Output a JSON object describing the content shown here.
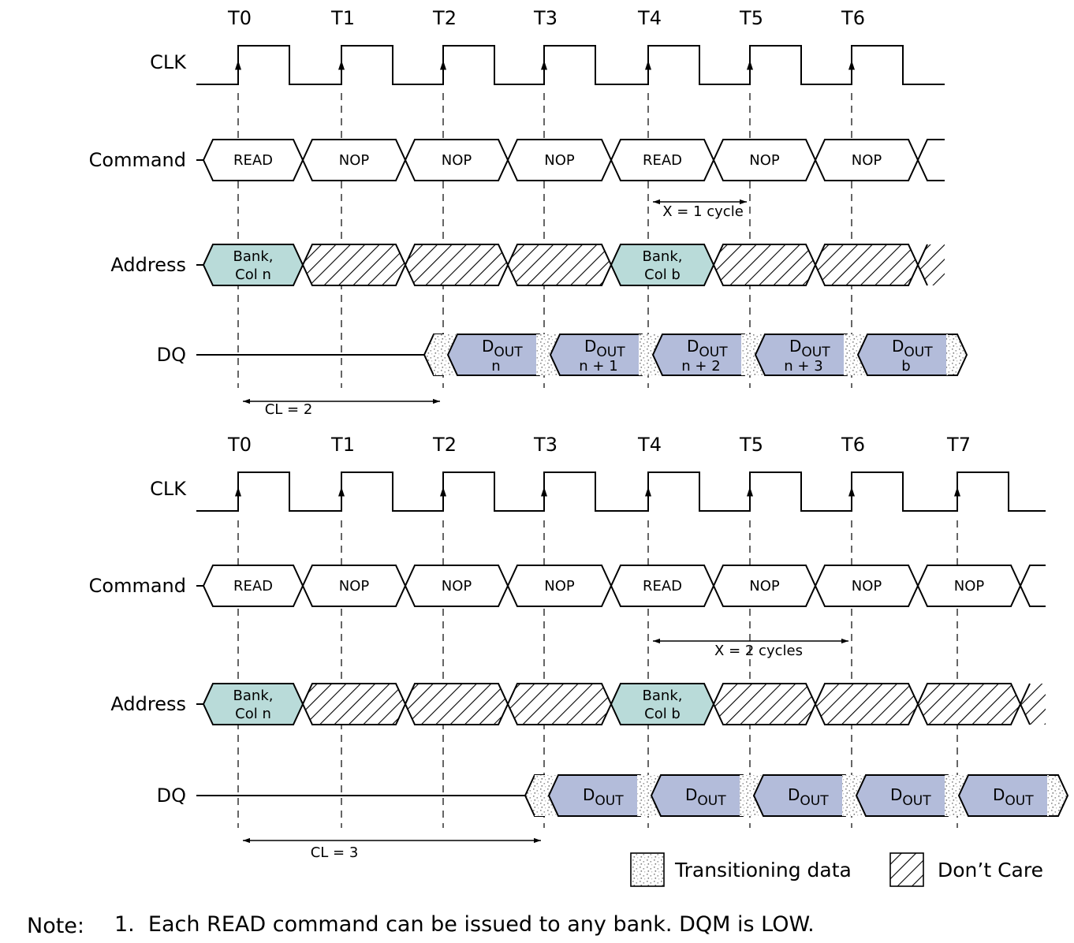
{
  "colors": {
    "address_fill": "#b9dbd9",
    "dout_fill": "#b3bcda",
    "transition_dots": "#888888",
    "line": "#000000"
  },
  "signal_names": {
    "clk": "CLK",
    "command": "Command",
    "address": "Address",
    "dq": "DQ"
  },
  "diagrams": [
    {
      "clock_labels": [
        "T0",
        "T1",
        "T2",
        "T3",
        "T4",
        "T5",
        "T6"
      ],
      "commands": [
        "READ",
        "NOP",
        "NOP",
        "NOP",
        "READ",
        "NOP",
        "NOP"
      ],
      "address": [
        {
          "kind": "value",
          "line1": "Bank,",
          "line2": "Col n"
        },
        {
          "kind": "dont_care"
        },
        {
          "kind": "dont_care"
        },
        {
          "kind": "dont_care"
        },
        {
          "kind": "value",
          "line1": "Bank,",
          "line2": "Col b"
        },
        {
          "kind": "dont_care"
        },
        {
          "kind": "dont_care"
        }
      ],
      "dq": [
        {
          "main": "D",
          "sub": "OUT",
          "line2": "n"
        },
        {
          "main": "D",
          "sub": "OUT",
          "line2": "n + 1"
        },
        {
          "main": "D",
          "sub": "OUT",
          "line2": "n + 2"
        },
        {
          "main": "D",
          "sub": "OUT",
          "line2": "n + 3"
        },
        {
          "main": "D",
          "sub": "OUT",
          "line2": "b"
        }
      ],
      "x_annotation": "X = 1 cycle",
      "cl_annotation": "CL = 2"
    },
    {
      "clock_labels": [
        "T0",
        "T1",
        "T2",
        "T3",
        "T4",
        "T5",
        "T6",
        "T7"
      ],
      "commands": [
        "READ",
        "NOP",
        "NOP",
        "NOP",
        "READ",
        "NOP",
        "NOP",
        "NOP"
      ],
      "address": [
        {
          "kind": "value",
          "line1": "Bank,",
          "line2": "Col n"
        },
        {
          "kind": "dont_care"
        },
        {
          "kind": "dont_care"
        },
        {
          "kind": "dont_care"
        },
        {
          "kind": "value",
          "line1": "Bank,",
          "line2": "Col b"
        },
        {
          "kind": "dont_care"
        },
        {
          "kind": "dont_care"
        },
        {
          "kind": "dont_care"
        }
      ],
      "dq": [
        {
          "main": "D",
          "sub": "OUT",
          "line2": ""
        },
        {
          "main": "D",
          "sub": "OUT",
          "line2": ""
        },
        {
          "main": "D",
          "sub": "OUT",
          "line2": ""
        },
        {
          "main": "D",
          "sub": "OUT",
          "line2": ""
        },
        {
          "main": "D",
          "sub": "OUT",
          "line2": ""
        }
      ],
      "x_annotation": "X = 2 cycles",
      "cl_annotation": "CL = 3"
    }
  ],
  "legend": {
    "transitioning": "Transitioning data",
    "dont_care": "Don’t Care"
  },
  "note": {
    "label": "Note:",
    "text": "1.  Each READ command can be issued to any bank. DQM is LOW."
  }
}
